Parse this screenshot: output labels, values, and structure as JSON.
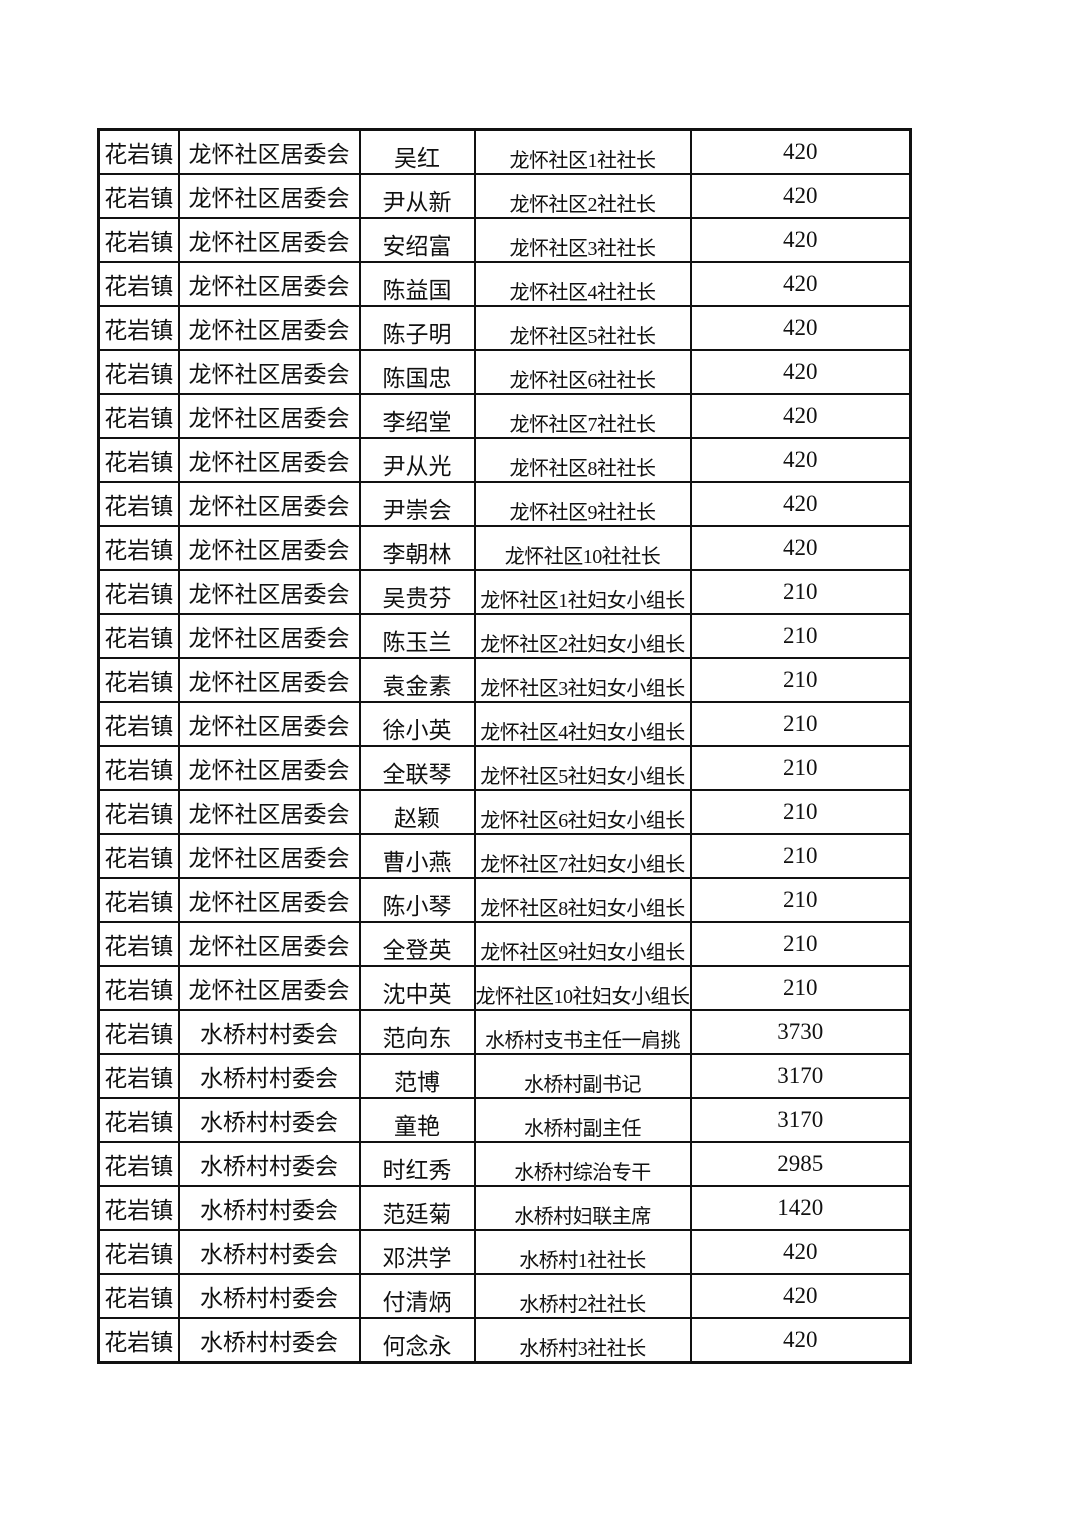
{
  "page": {
    "background_color": "#ffffff",
    "text_color": "#111111",
    "border_color": "#111111"
  },
  "table": {
    "column_keys": [
      "town",
      "org",
      "name",
      "position",
      "amount"
    ]
  },
  "rows": [
    {
      "town": "花岩镇",
      "org": "龙怀社区居委会",
      "name": "吴红",
      "position": "龙怀社区1社社长",
      "amount": "420"
    },
    {
      "town": "花岩镇",
      "org": "龙怀社区居委会",
      "name": "尹从新",
      "position": "龙怀社区2社社长",
      "amount": "420"
    },
    {
      "town": "花岩镇",
      "org": "龙怀社区居委会",
      "name": "安绍富",
      "position": "龙怀社区3社社长",
      "amount": "420"
    },
    {
      "town": "花岩镇",
      "org": "龙怀社区居委会",
      "name": "陈益国",
      "position": "龙怀社区4社社长",
      "amount": "420"
    },
    {
      "town": "花岩镇",
      "org": "龙怀社区居委会",
      "name": "陈子明",
      "position": "龙怀社区5社社长",
      "amount": "420"
    },
    {
      "town": "花岩镇",
      "org": "龙怀社区居委会",
      "name": "陈国忠",
      "position": "龙怀社区6社社长",
      "amount": "420"
    },
    {
      "town": "花岩镇",
      "org": "龙怀社区居委会",
      "name": "李绍堂",
      "position": "龙怀社区7社社长",
      "amount": "420"
    },
    {
      "town": "花岩镇",
      "org": "龙怀社区居委会",
      "name": "尹从光",
      "position": "龙怀社区8社社长",
      "amount": "420"
    },
    {
      "town": "花岩镇",
      "org": "龙怀社区居委会",
      "name": "尹崇会",
      "position": "龙怀社区9社社长",
      "amount": "420"
    },
    {
      "town": "花岩镇",
      "org": "龙怀社区居委会",
      "name": "李朝林",
      "position": "龙怀社区10社社长",
      "amount": "420"
    },
    {
      "town": "花岩镇",
      "org": "龙怀社区居委会",
      "name": "吴贵芬",
      "position": "龙怀社区1社妇女小组长",
      "amount": "210"
    },
    {
      "town": "花岩镇",
      "org": "龙怀社区居委会",
      "name": "陈玉兰",
      "position": "龙怀社区2社妇女小组长",
      "amount": "210"
    },
    {
      "town": "花岩镇",
      "org": "龙怀社区居委会",
      "name": "袁金素",
      "position": "龙怀社区3社妇女小组长",
      "amount": "210"
    },
    {
      "town": "花岩镇",
      "org": "龙怀社区居委会",
      "name": "徐小英",
      "position": "龙怀社区4社妇女小组长",
      "amount": "210"
    },
    {
      "town": "花岩镇",
      "org": "龙怀社区居委会",
      "name": "全联琴",
      "position": "龙怀社区5社妇女小组长",
      "amount": "210"
    },
    {
      "town": "花岩镇",
      "org": "龙怀社区居委会",
      "name": "赵颖",
      "position": "龙怀社区6社妇女小组长",
      "amount": "210"
    },
    {
      "town": "花岩镇",
      "org": "龙怀社区居委会",
      "name": "曹小燕",
      "position": "龙怀社区7社妇女小组长",
      "amount": "210"
    },
    {
      "town": "花岩镇",
      "org": "龙怀社区居委会",
      "name": "陈小琴",
      "position": "龙怀社区8社妇女小组长",
      "amount": "210"
    },
    {
      "town": "花岩镇",
      "org": "龙怀社区居委会",
      "name": "全登英",
      "position": "龙怀社区9社妇女小组长",
      "amount": "210"
    },
    {
      "town": "花岩镇",
      "org": "龙怀社区居委会",
      "name": "沈中英",
      "position": "龙怀社区10社妇女小组长",
      "amount": "210"
    },
    {
      "town": "花岩镇",
      "org": "水桥村村委会",
      "name": "范向东",
      "position": "水桥村支书主任一肩挑",
      "amount": "3730"
    },
    {
      "town": "花岩镇",
      "org": "水桥村村委会",
      "name": "范博",
      "position": "水桥村副书记",
      "amount": "3170"
    },
    {
      "town": "花岩镇",
      "org": "水桥村村委会",
      "name": "童艳",
      "position": "水桥村副主任",
      "amount": "3170"
    },
    {
      "town": "花岩镇",
      "org": "水桥村村委会",
      "name": "时红秀",
      "position": "水桥村综治专干",
      "amount": "2985"
    },
    {
      "town": "花岩镇",
      "org": "水桥村村委会",
      "name": "范廷菊",
      "position": "水桥村妇联主席",
      "amount": "1420"
    },
    {
      "town": "花岩镇",
      "org": "水桥村村委会",
      "name": "邓洪学",
      "position": "水桥村1社社长",
      "amount": "420"
    },
    {
      "town": "花岩镇",
      "org": "水桥村村委会",
      "name": "付清炳",
      "position": "水桥村2社社长",
      "amount": "420"
    },
    {
      "town": "花岩镇",
      "org": "水桥村村委会",
      "name": "何念永",
      "position": "水桥村3社社长",
      "amount": "420"
    }
  ]
}
